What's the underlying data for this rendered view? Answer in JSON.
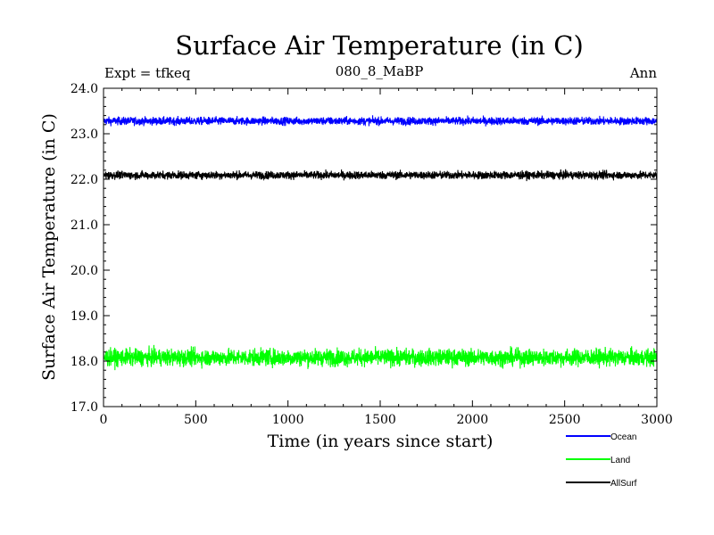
{
  "chart_data": {
    "type": "line",
    "title": "Surface Air Temperature (in C)",
    "subtitle": "080_8_MaBP",
    "left_label": "Expt = tfkeq",
    "right_label": "Ann",
    "xlabel": "Time (in years since start)",
    "ylabel": "Surface Air Temperature (in C)",
    "xlim": [
      0,
      3000
    ],
    "ylim": [
      17.0,
      24.0
    ],
    "x_ticks": [
      0,
      500,
      1000,
      1500,
      2000,
      2500,
      3000
    ],
    "x_tick_labels": [
      "0",
      "500",
      "1000",
      "1500",
      "2000",
      "2500",
      "3000"
    ],
    "y_ticks": [
      17.0,
      18.0,
      19.0,
      20.0,
      21.0,
      22.0,
      23.0,
      24.0
    ],
    "y_tick_labels": [
      "17.0",
      "18.0",
      "19.0",
      "20.0",
      "21.0",
      "22.0",
      "23.0",
      "24.0"
    ],
    "grid": false,
    "legend_position": "bottom-right",
    "series": [
      {
        "name": "Ocean",
        "color": "#0000ff",
        "mean": 23.28,
        "min": 23.05,
        "max": 23.48,
        "noise_amplitude": 0.08
      },
      {
        "name": "Land",
        "color": "#00ff00",
        "mean": 18.08,
        "min": 17.6,
        "max": 18.55,
        "noise_amplitude": 0.17
      },
      {
        "name": "AllSurf",
        "color": "#000000",
        "mean": 22.09,
        "min": 21.85,
        "max": 22.35,
        "noise_amplitude": 0.08
      }
    ]
  }
}
